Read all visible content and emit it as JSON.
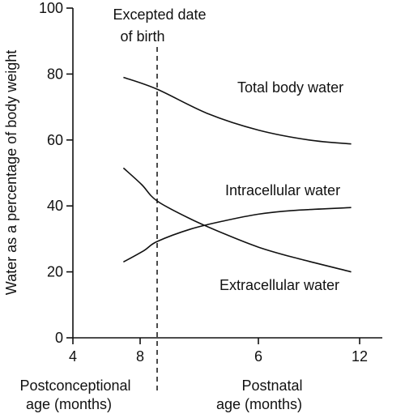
{
  "chart_data": {
    "type": "line",
    "ylabel": "Water as a percentage of body weight",
    "ylim": [
      0,
      100
    ],
    "yticks": [
      0,
      20,
      40,
      60,
      80,
      100
    ],
    "xticks": [
      "4",
      "8",
      "6",
      "12"
    ],
    "x_sections": [
      {
        "label_line1": "Postconceptional",
        "label_line2": "age (months)"
      },
      {
        "label_line1": "Postnatal",
        "label_line2": "age (months)"
      }
    ],
    "annotation": {
      "line1": "Excepted date",
      "line2": "of birth"
    },
    "grid": false,
    "series": [
      {
        "name": "Total body water",
        "points": [
          [
            -1.3,
            79
          ],
          [
            0,
            75.4
          ],
          [
            3,
            68
          ],
          [
            6,
            63
          ],
          [
            9,
            60
          ],
          [
            11.5,
            58.8
          ]
        ]
      },
      {
        "name": "Intracellular water",
        "points": [
          [
            -1.3,
            23
          ],
          [
            -0.5,
            26.5
          ],
          [
            0,
            29.2
          ],
          [
            2,
            33
          ],
          [
            4,
            35.5
          ],
          [
            6,
            37.5
          ],
          [
            8,
            38.6
          ],
          [
            11.5,
            39.5
          ]
        ]
      },
      {
        "name": "Extracellular water",
        "points": [
          [
            -1.3,
            51.5
          ],
          [
            -0.6,
            46.5
          ],
          [
            0,
            41.5
          ],
          [
            2,
            36
          ],
          [
            4,
            31.5
          ],
          [
            6,
            27.5
          ],
          [
            8,
            24.5
          ],
          [
            11.5,
            20
          ]
        ]
      }
    ]
  }
}
